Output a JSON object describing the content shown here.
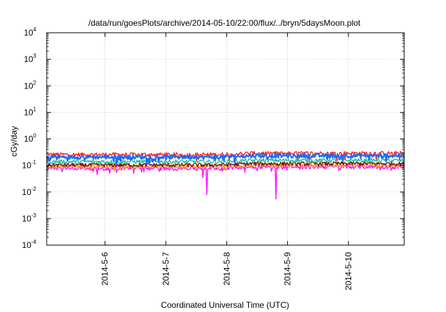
{
  "chart_data": {
    "type": "line",
    "title": "/data/run/goesPlots/archive/2014-05-10/22:00/flux/../bryn/5daysMoon.plot",
    "xlabel": "Coordinated Universal Time (UTC)",
    "ylabel": "cGy/day",
    "yscale": "log",
    "ylim": [
      0.0001,
      10000
    ],
    "y_ticks": [
      {
        "base": "10",
        "exp": "-4"
      },
      {
        "base": "10",
        "exp": "-3"
      },
      {
        "base": "10",
        "exp": "-2"
      },
      {
        "base": "10",
        "exp": "-1"
      },
      {
        "base": "10",
        "exp": "0"
      },
      {
        "base": "10",
        "exp": "1"
      },
      {
        "base": "10",
        "exp": "2"
      },
      {
        "base": "10",
        "exp": "3"
      },
      {
        "base": "10",
        "exp": "4"
      }
    ],
    "xlim": [
      "2014-05-05 01:00",
      "2014-05-10 22:00"
    ],
    "x_ticks": [
      "2014-5-6",
      "2014-5-7",
      "2014-5-8",
      "2014-5-9",
      "2014-5-10"
    ],
    "grid": true,
    "legend": "none",
    "series": [
      {
        "color": "#ff2020",
        "level": 0.26,
        "values_approx": "0.22-0.32 cGy/day, rising slightly after 2014-05-08"
      },
      {
        "color": "#1a6cff",
        "level": 0.21,
        "values_approx": "dips to ~0.12 at frequent intervals"
      },
      {
        "color": "#20c0a0",
        "level": 0.14
      },
      {
        "color": "#7a1010",
        "level": 0.105
      },
      {
        "color": "#ff9a20",
        "level": 0.092
      },
      {
        "color": "#ff10ff",
        "level": 0.08,
        "dips": [
          {
            "x": "2014-05-05 21:00",
            "y": 0.045
          },
          {
            "x": "2014-05-06 21:30",
            "y": 0.06
          },
          {
            "x": "2014-05-07 14:30",
            "y": 0.035
          },
          {
            "x": "2014-05-07 16:00",
            "y": 0.008
          },
          {
            "x": "2014-05-08 19:30",
            "y": 0.0055
          }
        ]
      }
    ]
  }
}
